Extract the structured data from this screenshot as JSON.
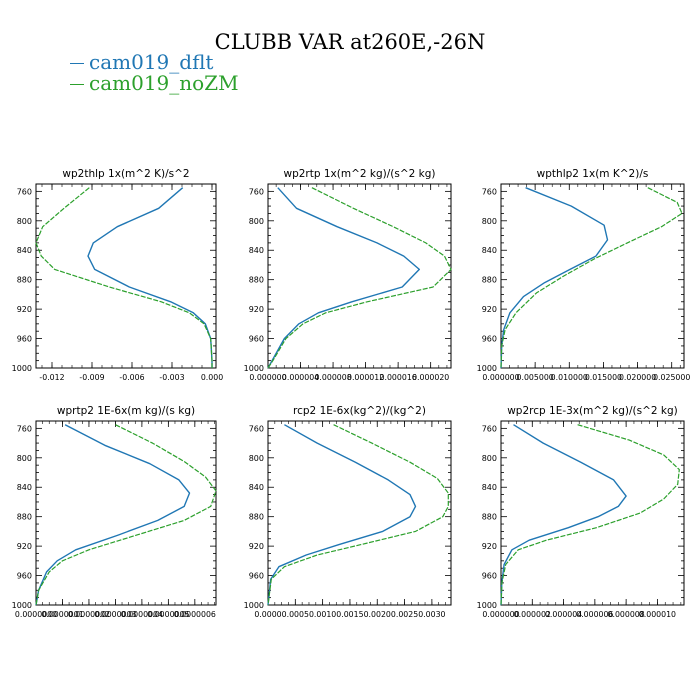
{
  "title": "CLUBB VAR at260E,-26N",
  "legend": [
    {
      "name": "cam019_dflt",
      "color": "#2077b4"
    },
    {
      "name": "cam019_noZM",
      "color": "#2ca02c"
    }
  ],
  "chart_data": [
    {
      "type": "line",
      "title": "wp2thlp  1x(m^2 K)/s^2",
      "ylim": [
        1000,
        750
      ],
      "yticks": [
        "760",
        "800",
        "840",
        "880",
        "920",
        "960",
        "1000"
      ],
      "xlim": [
        -0.0132,
        0.0003
      ],
      "xticks": [
        {
          "v": -0.012,
          "label": "-0.012"
        },
        {
          "v": -0.009,
          "label": "-0.009"
        },
        {
          "v": -0.006,
          "label": "-0.006"
        },
        {
          "v": -0.003,
          "label": "-0.003"
        },
        {
          "v": 0.0,
          "label": "0.000"
        }
      ],
      "series": [
        {
          "name": "cam019_dflt",
          "points": [
            [
              -0.0022,
              755
            ],
            [
              -0.004,
              783
            ],
            [
              -0.0071,
              808
            ],
            [
              -0.0089,
              830
            ],
            [
              -0.0093,
              848
            ],
            [
              -0.0088,
              866
            ],
            [
              -0.0062,
              890
            ],
            [
              -0.0031,
              910
            ],
            [
              -0.0014,
              925
            ],
            [
              -0.0005,
              940
            ],
            [
              -0.0001,
              960
            ],
            [
              0.0,
              990
            ],
            [
              0.0,
              1000
            ]
          ]
        },
        {
          "name": "cam019_noZM",
          "points": [
            [
              -0.0092,
              755
            ],
            [
              -0.0111,
              783
            ],
            [
              -0.0127,
              808
            ],
            [
              -0.0132,
              830
            ],
            [
              -0.0128,
              848
            ],
            [
              -0.0118,
              866
            ],
            [
              -0.0077,
              890
            ],
            [
              -0.0038,
              910
            ],
            [
              -0.0017,
              925
            ],
            [
              -0.0006,
              940
            ],
            [
              -0.0001,
              960
            ],
            [
              0.0,
              990
            ],
            [
              0.0,
              1000
            ]
          ]
        }
      ]
    },
    {
      "type": "line",
      "title": "wp2rtp  1x(m^2 kg)/(s^2 kg)",
      "ylim": [
        1000,
        750
      ],
      "yticks": [
        "760",
        "800",
        "840",
        "880",
        "920",
        "960",
        "1000"
      ],
      "xlim": [
        0.0,
        2.25e-05
      ],
      "xticks": [
        {
          "v": 0.0,
          "label": "0.000000"
        },
        {
          "v": 4e-06,
          "label": "0.000004"
        },
        {
          "v": 8e-06,
          "label": "0.000008"
        },
        {
          "v": 1.2e-05,
          "label": "0.000012"
        },
        {
          "v": 1.6e-05,
          "label": "0.000016"
        },
        {
          "v": 2e-05,
          "label": "0.000020"
        }
      ],
      "series": [
        {
          "name": "cam019_dflt",
          "points": [
            [
              1.2e-06,
              755
            ],
            [
              3.5e-06,
              783
            ],
            [
              8.5e-06,
              808
            ],
            [
              1.34e-05,
              830
            ],
            [
              1.67e-05,
              848
            ],
            [
              1.86e-05,
              866
            ],
            [
              1.65e-05,
              890
            ],
            [
              1.03e-05,
              910
            ],
            [
              6.2e-06,
              925
            ],
            [
              3.8e-06,
              940
            ],
            [
              2e-06,
              960
            ],
            [
              5e-07,
              990
            ],
            [
              0.0,
              1000
            ]
          ]
        },
        {
          "name": "cam019_noZM",
          "points": [
            [
              5.4e-06,
              755
            ],
            [
              1.05e-05,
              783
            ],
            [
              1.54e-05,
              808
            ],
            [
              1.94e-05,
              830
            ],
            [
              2.17e-05,
              848
            ],
            [
              2.25e-05,
              866
            ],
            [
              2.03e-05,
              890
            ],
            [
              1.22e-05,
              910
            ],
            [
              7.1e-06,
              925
            ],
            [
              4.3e-06,
              940
            ],
            [
              2.2e-06,
              960
            ],
            [
              6e-07,
              990
            ],
            [
              0.0,
              1000
            ]
          ]
        }
      ]
    },
    {
      "type": "line",
      "title": "wpthlp2  1x(m K^2)/s",
      "ylim": [
        1000,
        750
      ],
      "yticks": [
        "760",
        "800",
        "840",
        "880",
        "920",
        "960",
        "1000"
      ],
      "xlim": [
        0.0,
        0.0268
      ],
      "xticks": [
        {
          "v": 0.0,
          "label": "0.000000"
        },
        {
          "v": 0.005,
          "label": "0.005000"
        },
        {
          "v": 0.01,
          "label": "0.010000"
        },
        {
          "v": 0.015,
          "label": "0.015000"
        },
        {
          "v": 0.02,
          "label": "0.020000"
        },
        {
          "v": 0.025,
          "label": "0.025000"
        }
      ],
      "series": [
        {
          "name": "cam019_dflt",
          "points": [
            [
              0.0036,
              755
            ],
            [
              0.0103,
              780
            ],
            [
              0.0151,
              806
            ],
            [
              0.0156,
              826
            ],
            [
              0.0139,
              848
            ],
            [
              0.0101,
              866
            ],
            [
              0.0064,
              884
            ],
            [
              0.0033,
              903
            ],
            [
              0.0013,
              925
            ],
            [
              0.0004,
              948
            ],
            [
              0.0001,
              970
            ],
            [
              0.0,
              1000
            ]
          ]
        },
        {
          "name": "cam019_noZM",
          "points": [
            [
              0.0215,
              755
            ],
            [
              0.0258,
              775
            ],
            [
              0.0265,
              790
            ],
            [
              0.0235,
              808
            ],
            [
              0.0185,
              830
            ],
            [
              0.0136,
              852
            ],
            [
              0.0092,
              875
            ],
            [
              0.0052,
              898
            ],
            [
              0.0022,
              925
            ],
            [
              0.0006,
              948
            ],
            [
              0.0001,
              970
            ],
            [
              0.0,
              1000
            ]
          ]
        }
      ]
    },
    {
      "type": "line",
      "title": "wprtp2  1E-6x(m kg)/(s kg)",
      "ylim": [
        1000,
        750
      ],
      "yticks": [
        "760",
        "800",
        "840",
        "880",
        "920",
        "960",
        "1000"
      ],
      "xlim": [
        0.0,
        6.8e-07
      ],
      "xticks": [
        {
          "v": 0.0,
          "label": "0.0000000"
        },
        {
          "v": 1e-07,
          "label": "0.0000001"
        },
        {
          "v": 2e-07,
          "label": "0.0000002"
        },
        {
          "v": 3e-07,
          "label": "0.0000003"
        },
        {
          "v": 4e-07,
          "label": "0.0000004"
        },
        {
          "v": 5e-07,
          "label": "0.0000005"
        },
        {
          "v": 6e-07,
          "label": "0.0000006"
        }
      ],
      "series": [
        {
          "name": "cam019_dflt",
          "points": [
            [
              1.1e-07,
              755
            ],
            [
              2.6e-07,
              783
            ],
            [
              4.3e-07,
              808
            ],
            [
              5.4e-07,
              830
            ],
            [
              5.8e-07,
              848
            ],
            [
              5.6e-07,
              866
            ],
            [
              4.6e-07,
              885
            ],
            [
              3.1e-07,
              905
            ],
            [
              1.5e-07,
              925
            ],
            [
              8e-08,
              940
            ],
            [
              4e-08,
              955
            ],
            [
              1e-08,
              980
            ],
            [
              0.0,
              1000
            ]
          ]
        },
        {
          "name": "cam019_noZM",
          "points": [
            [
              3e-07,
              755
            ],
            [
              4.4e-07,
              780
            ],
            [
              5.6e-07,
              805
            ],
            [
              6.4e-07,
              826
            ],
            [
              6.8e-07,
              845
            ],
            [
              6.6e-07,
              866
            ],
            [
              5.6e-07,
              885
            ],
            [
              3.8e-07,
              905
            ],
            [
              2e-07,
              925
            ],
            [
              1e-07,
              940
            ],
            [
              5e-08,
              955
            ],
            [
              1e-08,
              980
            ],
            [
              0.0,
              1000
            ]
          ]
        }
      ]
    },
    {
      "type": "line",
      "title": "rcp2  1E-6x(kg^2)/(kg^2)",
      "ylim": [
        1000,
        750
      ],
      "yticks": [
        "760",
        "800",
        "840",
        "880",
        "920",
        "960",
        "1000"
      ],
      "xlim": [
        0.0,
        0.00335
      ],
      "xticks": [
        {
          "v": 0.0,
          "label": "0.0000"
        },
        {
          "v": 0.0005,
          "label": "0.0005"
        },
        {
          "v": 0.001,
          "label": "0.0010"
        },
        {
          "v": 0.0015,
          "label": "0.0015"
        },
        {
          "v": 0.002,
          "label": "0.0020"
        },
        {
          "v": 0.0025,
          "label": "0.0025"
        },
        {
          "v": 0.003,
          "label": "0.0030"
        }
      ],
      "series": [
        {
          "name": "cam019_dflt",
          "points": [
            [
              0.0003,
              755
            ],
            [
              0.0009,
              780
            ],
            [
              0.0016,
              806
            ],
            [
              0.0022,
              830
            ],
            [
              0.0026,
              850
            ],
            [
              0.0027,
              866
            ],
            [
              0.0026,
              880
            ],
            [
              0.0021,
              900
            ],
            [
              0.0013,
              918
            ],
            [
              0.0007,
              932
            ],
            [
              0.0002,
              948
            ],
            [
              5e-05,
              965
            ],
            [
              0.0,
              1000
            ]
          ]
        },
        {
          "name": "cam019_noZM",
          "points": [
            [
              0.0012,
              755
            ],
            [
              0.0019,
              780
            ],
            [
              0.0026,
              806
            ],
            [
              0.0031,
              828
            ],
            [
              0.0033,
              848
            ],
            [
              0.0033,
              866
            ],
            [
              0.0032,
              880
            ],
            [
              0.0027,
              900
            ],
            [
              0.0017,
              918
            ],
            [
              0.0009,
              932
            ],
            [
              0.0003,
              948
            ],
            [
              6e-05,
              965
            ],
            [
              0.0,
              1000
            ]
          ]
        }
      ]
    },
    {
      "type": "line",
      "title": "wp2rcp  1E-3x(m^2 kg)/(s^2 kg)",
      "ylim": [
        1000,
        750
      ],
      "yticks": [
        "760",
        "800",
        "840",
        "880",
        "920",
        "960",
        "1000"
      ],
      "xlim": [
        0.0,
        1.17e-05
      ],
      "xticks": [
        {
          "v": 0.0,
          "label": "0.000000"
        },
        {
          "v": 2e-06,
          "label": "0.000002"
        },
        {
          "v": 4e-06,
          "label": "0.000004"
        },
        {
          "v": 6e-06,
          "label": "0.000006"
        },
        {
          "v": 8e-06,
          "label": "0.000008"
        },
        {
          "v": 1e-05,
          "label": "0.000010"
        }
      ],
      "series": [
        {
          "name": "cam019_dflt",
          "points": [
            [
              8e-07,
              755
            ],
            [
              2.7e-06,
              780
            ],
            [
              5.1e-06,
              806
            ],
            [
              7.2e-06,
              830
            ],
            [
              8e-06,
              852
            ],
            [
              7.5e-06,
              866
            ],
            [
              6.2e-06,
              880
            ],
            [
              4.3e-06,
              895
            ],
            [
              1.8e-06,
              912
            ],
            [
              7e-07,
              925
            ],
            [
              2e-07,
              945
            ],
            [
              5e-08,
              970
            ],
            [
              0.0,
              1000
            ]
          ]
        },
        {
          "name": "cam019_noZM",
          "points": [
            [
              4.9e-06,
              755
            ],
            [
              8.2e-06,
              776
            ],
            [
              1.04e-05,
              796
            ],
            [
              1.14e-05,
              816
            ],
            [
              1.13e-05,
              836
            ],
            [
              1.04e-05,
              856
            ],
            [
              8.9e-06,
              875
            ],
            [
              6.1e-06,
              895
            ],
            [
              2.9e-06,
              912
            ],
            [
              1.1e-06,
              925
            ],
            [
              3e-07,
              945
            ],
            [
              6e-08,
              970
            ],
            [
              0.0,
              1000
            ]
          ]
        }
      ]
    }
  ]
}
